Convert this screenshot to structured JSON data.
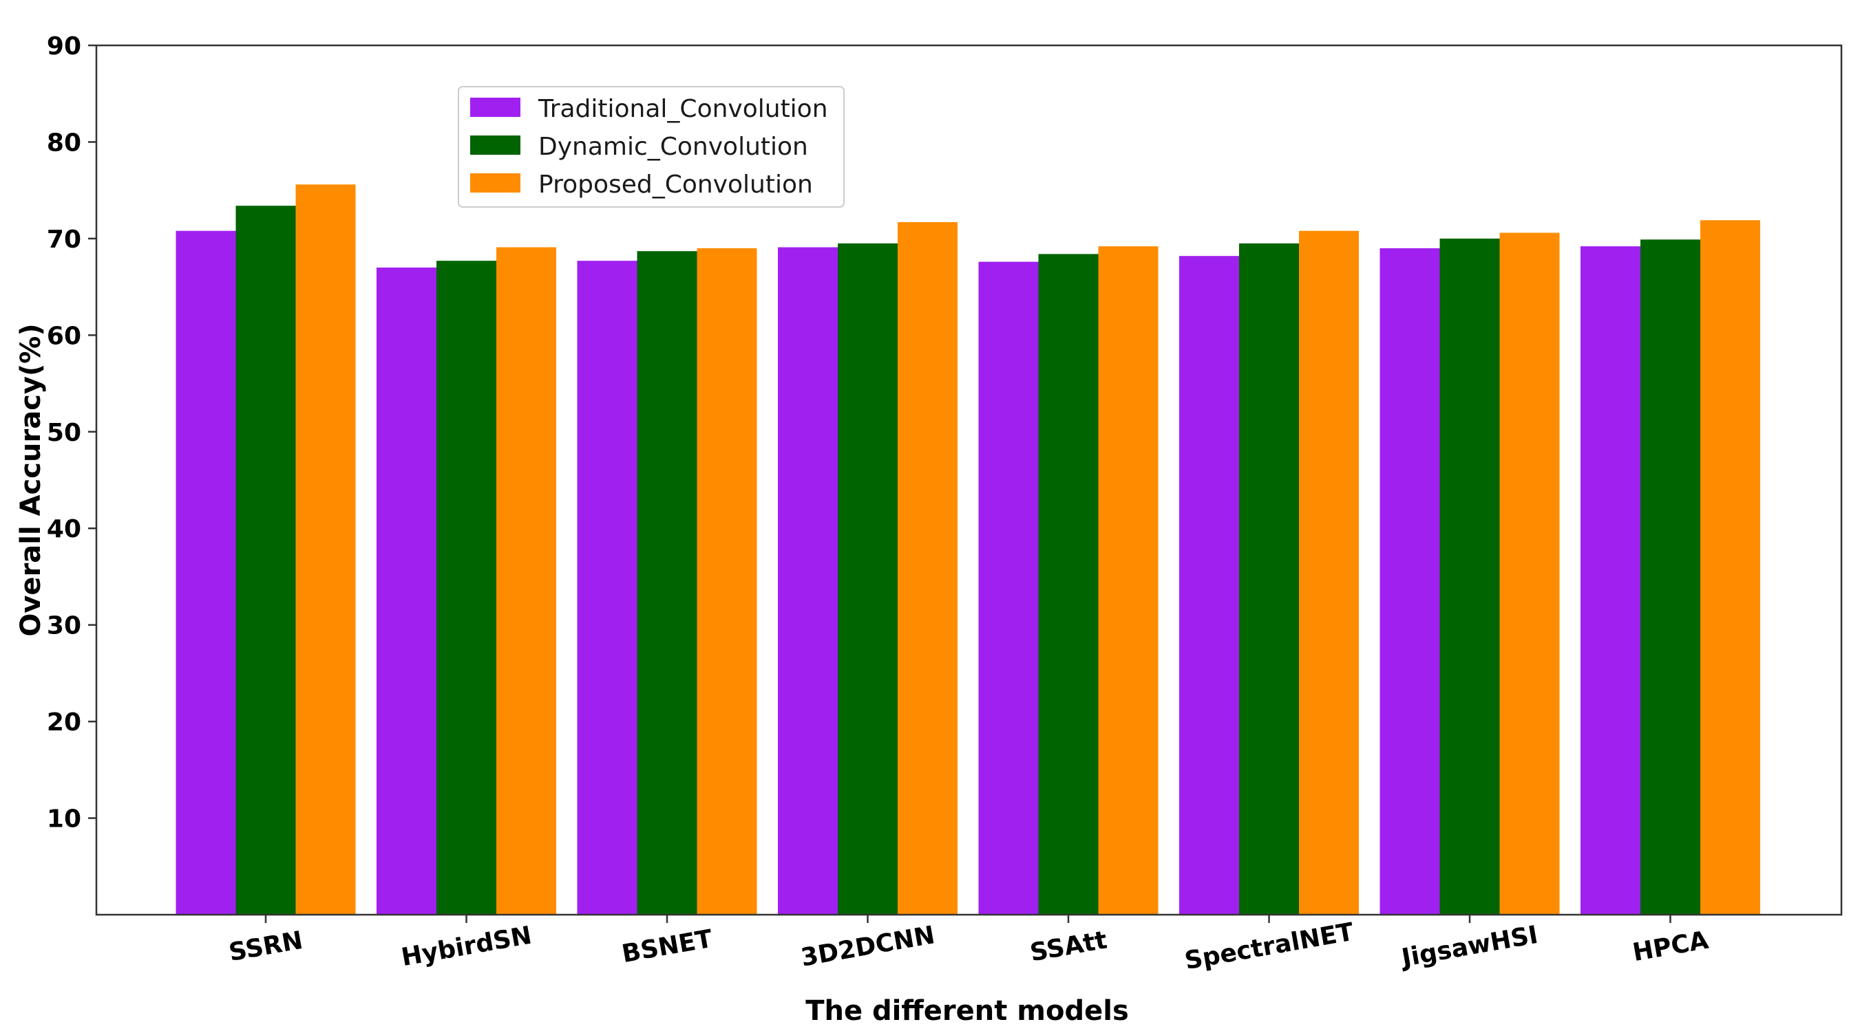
{
  "chart_data": {
    "type": "bar",
    "title": "",
    "xlabel": "The different models",
    "ylabel": "Overall Accuracy(%)",
    "categories": [
      "SSRN",
      "HybirdSN",
      "BSNET",
      "3D2DCNN",
      "SSAtt",
      "SpectralNET",
      "JigsawHSI",
      "HPCA"
    ],
    "series": [
      {
        "name": "Traditional_Convolution",
        "color": "#a020f0",
        "values": [
          70.8,
          67.0,
          67.7,
          69.1,
          67.6,
          68.2,
          69.0,
          69.2
        ]
      },
      {
        "name": "Dynamic_Convolution",
        "color": "#006400",
        "values": [
          73.4,
          67.7,
          68.7,
          69.5,
          68.4,
          69.5,
          70.0,
          69.9
        ]
      },
      {
        "name": "Proposed_Convolution",
        "color": "#ff8c00",
        "values": [
          75.6,
          69.1,
          69.0,
          71.7,
          69.2,
          70.8,
          70.6,
          71.9
        ]
      }
    ],
    "ylim": [
      0,
      90
    ],
    "yticks": [
      10,
      20,
      30,
      40,
      50,
      60,
      70,
      80,
      90
    ],
    "grid": false,
    "legend_position": "upper-left",
    "xtick_rotation": "rotated"
  }
}
